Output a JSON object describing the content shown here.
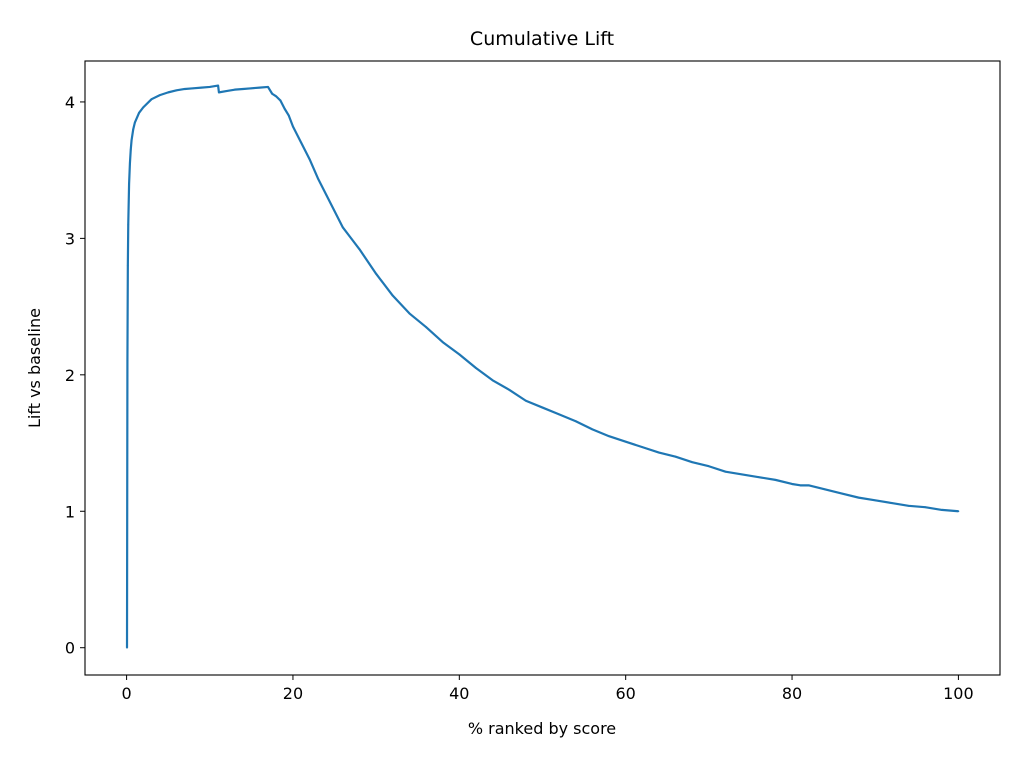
{
  "chart_data": {
    "type": "line",
    "title": "Cumulative Lift",
    "xlabel": "% ranked by score",
    "ylabel": "Lift vs baseline",
    "xlim": [
      -5,
      105
    ],
    "ylim": [
      -0.2,
      4.3
    ],
    "xticks": [
      0,
      20,
      40,
      60,
      80,
      100
    ],
    "yticks": [
      0,
      1,
      2,
      3,
      4
    ],
    "grid": false,
    "line_color": "#1f77b4",
    "series": [
      {
        "x": [
          0.05,
          0.1,
          0.15,
          0.2,
          0.3,
          0.4,
          0.5,
          0.6,
          0.8,
          1.0,
          1.5,
          2.0,
          3.0,
          4.0,
          5.0,
          6.0,
          7.0,
          8.0,
          9.0,
          10.0,
          11.0,
          11.1,
          12.0,
          13.0,
          14.0,
          15.0,
          16.0,
          17.0,
          17.5,
          18.0,
          18.5,
          19.0,
          19.5,
          20.0,
          21.0,
          22.0,
          23.0,
          24.0,
          25.0,
          26.0,
          27.0,
          28.0,
          30.0,
          32.0,
          34.0,
          36.0,
          38.0,
          40.0,
          42.0,
          44.0,
          46.0,
          48.0,
          50.0,
          52.0,
          54.0,
          56.0,
          58.0,
          60.0,
          62.0,
          64.0,
          66.0,
          68.0,
          70.0,
          72.0,
          74.0,
          76.0,
          78.0,
          80.0,
          81.0,
          82.0,
          84.0,
          86.0,
          88.0,
          90.0,
          92.0,
          94.0,
          96.0,
          98.0,
          100.0
        ],
        "y": [
          0.0,
          2.1,
          2.8,
          3.1,
          3.4,
          3.55,
          3.65,
          3.72,
          3.8,
          3.85,
          3.92,
          3.96,
          4.02,
          4.05,
          4.07,
          4.085,
          4.095,
          4.1,
          4.105,
          4.11,
          4.12,
          4.07,
          4.08,
          4.09,
          4.095,
          4.1,
          4.105,
          4.11,
          4.06,
          4.04,
          4.01,
          3.95,
          3.9,
          3.82,
          3.7,
          3.58,
          3.44,
          3.32,
          3.2,
          3.08,
          3.0,
          2.92,
          2.74,
          2.58,
          2.45,
          2.35,
          2.24,
          2.15,
          2.05,
          1.96,
          1.89,
          1.81,
          1.76,
          1.71,
          1.66,
          1.6,
          1.55,
          1.51,
          1.47,
          1.43,
          1.4,
          1.36,
          1.33,
          1.29,
          1.27,
          1.25,
          1.23,
          1.2,
          1.19,
          1.19,
          1.16,
          1.13,
          1.1,
          1.08,
          1.06,
          1.04,
          1.03,
          1.01,
          1.0
        ]
      }
    ]
  }
}
